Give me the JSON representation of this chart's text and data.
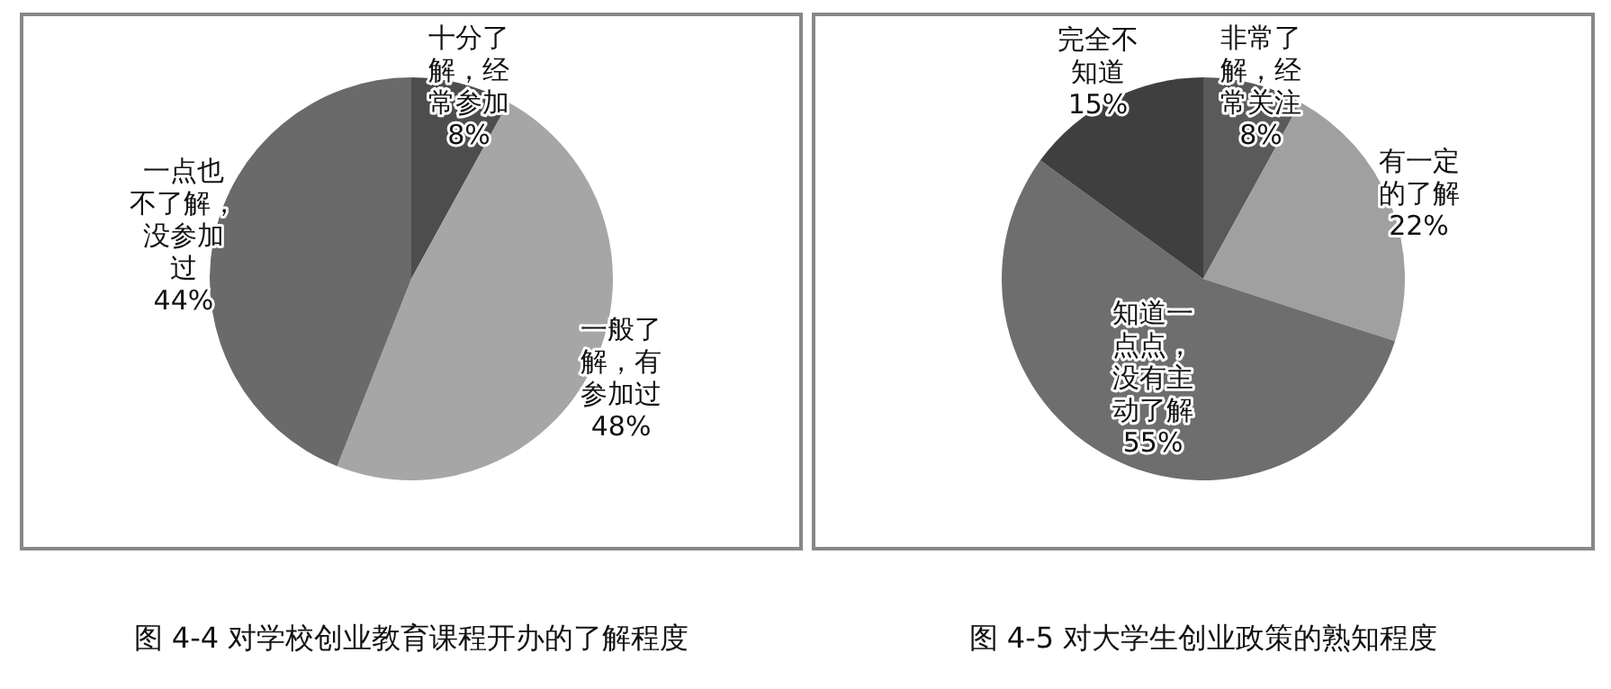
{
  "chart_data": [
    {
      "type": "pie",
      "title": "图 4-4 对学校创业教育课程开办的了解程度",
      "categories": [
        "十分了解，经常参加",
        "一般了解，有参加过",
        "一点也不了解，没参加过"
      ],
      "values": [
        8,
        48,
        44
      ],
      "colors": [
        "#4d4d4d",
        "#a6a6a6",
        "#6a6a6a"
      ],
      "value_labels": [
        "8%",
        "48%",
        "44%"
      ]
    },
    {
      "type": "pie",
      "title": "图 4-5 对大学生创业政策的熟知程度",
      "categories": [
        "非常了解，经常关注",
        "有一定的了解",
        "知道一点点，没有主动了解",
        "完全不知道"
      ],
      "values": [
        8,
        22,
        55,
        15
      ],
      "colors": [
        "#5a5a5a",
        "#a0a0a0",
        "#6e6e6e",
        "#3f3f3f"
      ],
      "value_labels": [
        "8%",
        "22%",
        "55%",
        "15%"
      ]
    }
  ]
}
